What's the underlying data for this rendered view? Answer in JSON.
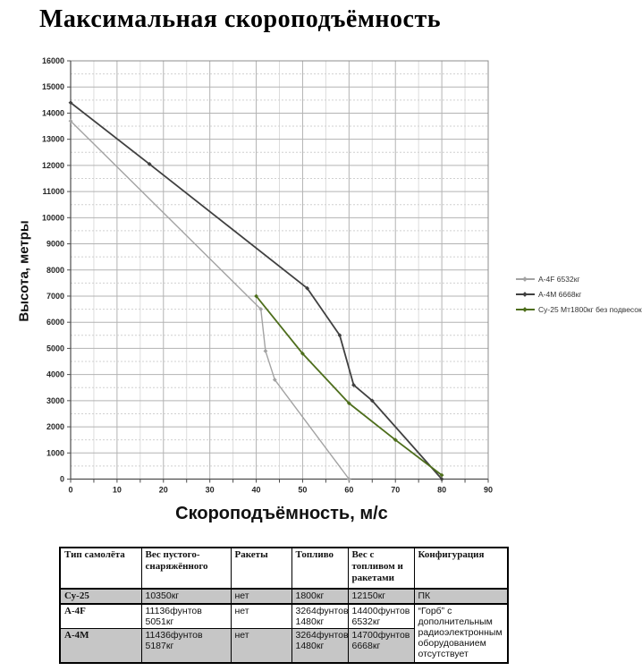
{
  "page_title": "Максимальная скороподъёмность",
  "chart_data": {
    "type": "line",
    "title": "Максимальная скороподъёмность",
    "xlabel": "Скороподъёмность, м/с",
    "ylabel": "Высота, метры",
    "xlim": [
      0,
      90
    ],
    "ylim": [
      0,
      16000
    ],
    "x_major_step": 10,
    "x_minor_step": 5,
    "y_major_step": 1000,
    "y_minor_step": 500,
    "grid": true,
    "legend_position": "right",
    "series": [
      {
        "name": "A-4F 6532кг",
        "color": "#a3a3a3",
        "width": 1.4,
        "points": [
          [
            0,
            13700
          ],
          [
            41,
            6500
          ],
          [
            42,
            4900
          ],
          [
            44,
            3800
          ],
          [
            60,
            0
          ]
        ]
      },
      {
        "name": "A-4M 6668кг",
        "color": "#404040",
        "width": 1.8,
        "points": [
          [
            0,
            14400
          ],
          [
            17,
            12050
          ],
          [
            51,
            7300
          ],
          [
            58,
            5500
          ],
          [
            61,
            3600
          ],
          [
            65,
            3000
          ],
          [
            80,
            0
          ]
        ]
      },
      {
        "name": "Су-25 Мт1800кг без подвесок",
        "color": "#4e6e1c",
        "width": 1.8,
        "points": [
          [
            40,
            7000
          ],
          [
            50,
            4800
          ],
          [
            60,
            2900
          ],
          [
            70,
            1500
          ],
          [
            80,
            150
          ]
        ]
      }
    ]
  },
  "table": {
    "headers": [
      "Тип самолёта",
      "Вес пустого-снаряжённого",
      "Ракеты",
      "Топливо",
      "Вес с топливом и ракетами",
      "Конфигурация"
    ],
    "rows": [
      {
        "cells": [
          "Су-25",
          "10350кг",
          "нет",
          "1800кг",
          "12150кг",
          "ПК"
        ]
      },
      {
        "cells": [
          "A-4F",
          "11136фунтов 5051кг",
          "нет",
          "3264фунтов 1480кг",
          "14400фунтов 6532кг",
          "“Горб” с дополнительным радиоэлектронным оборудованием отсутствует"
        ]
      },
      {
        "cells": [
          "A-4M",
          "11436фунтов 5187кг",
          "нет",
          "3264фунтов 1480кг",
          "14700фунтов 6668кг"
        ]
      }
    ]
  }
}
